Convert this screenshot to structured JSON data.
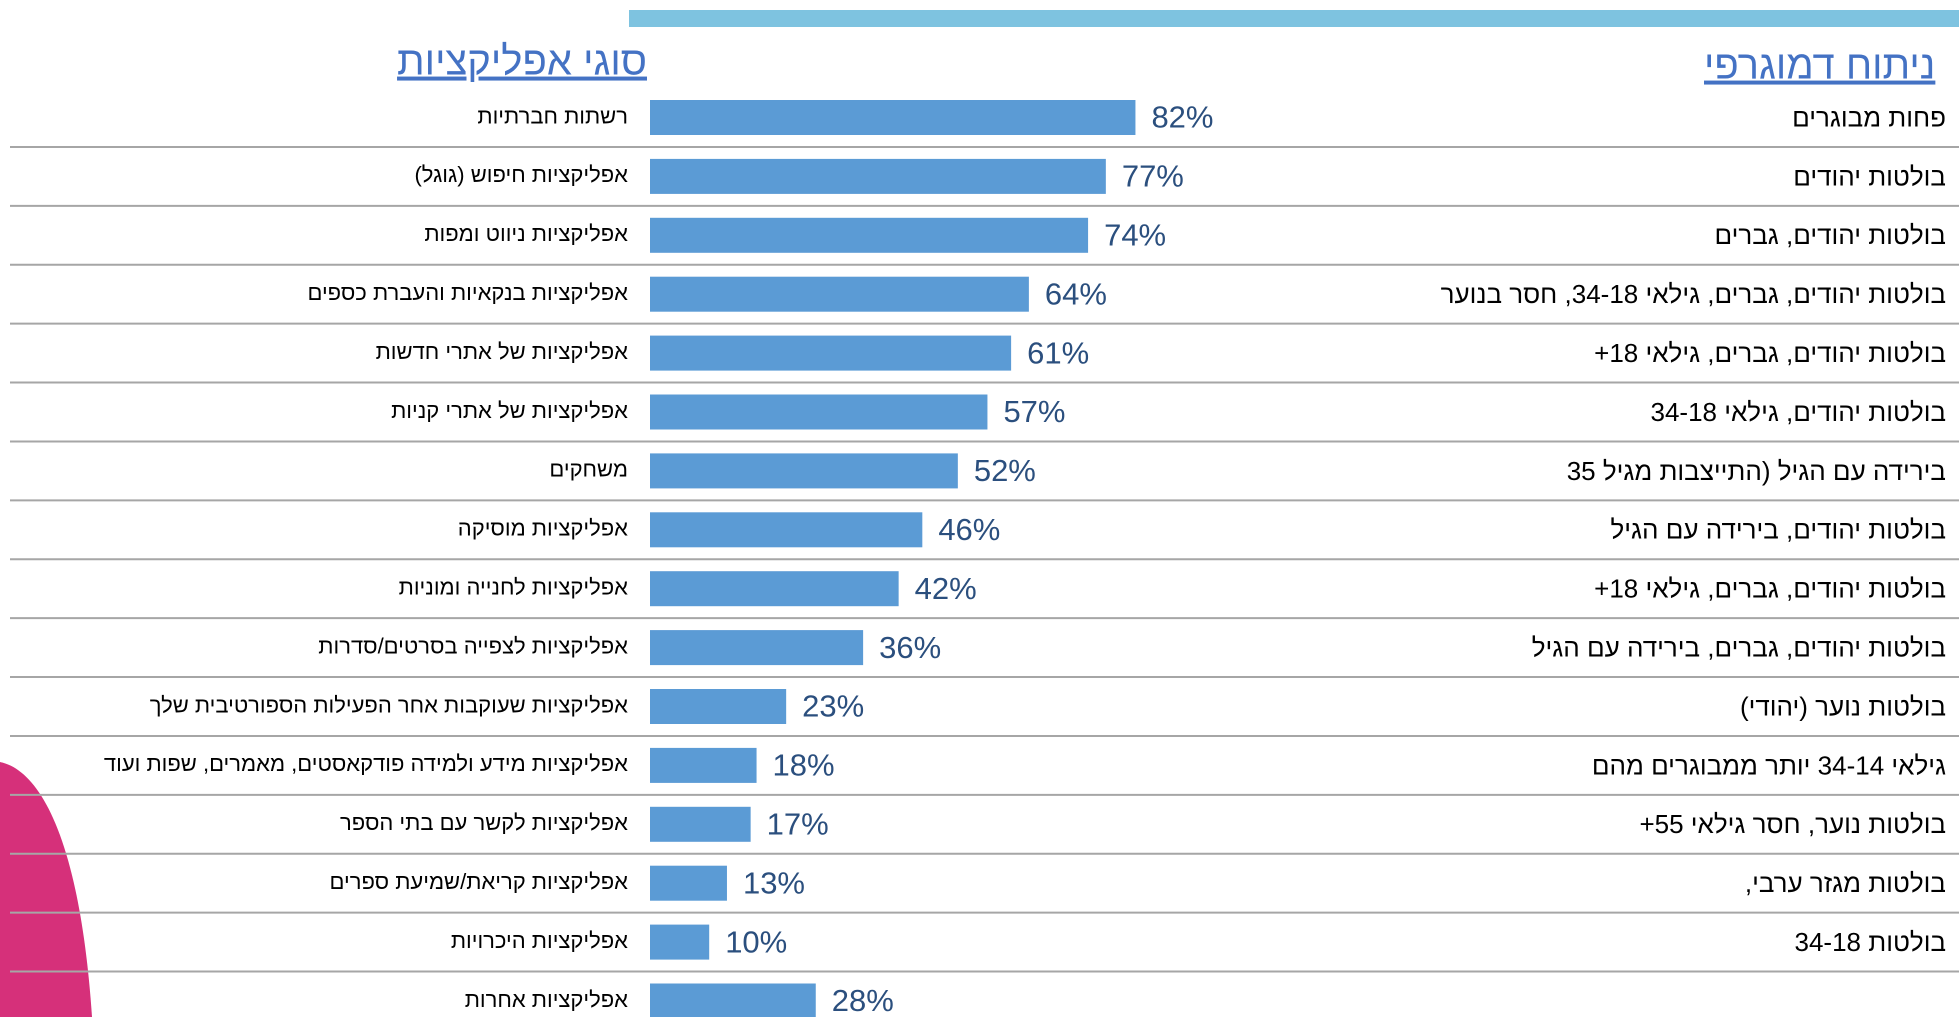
{
  "chart_data": {
    "type": "bar",
    "orientation": "horizontal",
    "title": "סוגי אפליקציות",
    "color": "#5b9bd5",
    "categories": [
      "רשתות חברתיות",
      "אפליקציות חיפוש (גוגל)",
      "אפליקציות ניווט ומפות",
      "אפליקציות בנקאיות והעברת כספים",
      "אפליקציות של אתרי חדשות",
      "אפליקציות של אתרי קניות",
      "משחקים",
      "אפליקציות מוסיקה",
      "אפליקציות לחנייה ומוניות",
      "אפליקציות לצפייה בסרטים/סדרות",
      "אפליקציות שעוקבות אחר הפעילות הספורטיבית שלך",
      "אפליקציות מידע ולמידה פודקאסטים, מאמרים, שפות ועוד",
      "אפליקציות לקשר עם בתי הספר",
      "אפליקציות קריאת/שמיעת  ספרים",
      "אפליקציות היכרויות",
      "אפליקציות אחרות"
    ],
    "values": [
      82,
      77,
      74,
      64,
      61,
      57,
      52,
      46,
      42,
      36,
      23,
      18,
      17,
      13,
      10,
      28
    ],
    "value_labels": [
      "82%",
      "77%",
      "74%",
      "64%",
      "61%",
      "57%",
      "52%",
      "46%",
      "42%",
      "36%",
      "23%",
      "18%",
      "17%",
      "13%",
      "10%",
      "28%"
    ]
  },
  "demographics": {
    "title": "ניתוח דמוגרפי",
    "rows": [
      "פחות מבוגרים",
      "בולטות יהודים",
      "בולטות יהודים, גברים",
      "בולטות יהודים, גברים, גילאי 34-18, חסר בנוער",
      "בולטות יהודים, גברים, גילאי 18+",
      "בולטות יהודים, גילאי 34-18",
      "בירידה עם הגיל (התייצבות מגיל 35",
      "בולטות יהודים, בירידה עם הגיל",
      "בולטות יהודים, גברים, גילאי 18+",
      "בולטות יהודים, גברים, בירידה עם הגיל",
      "בולטות נוער (יהודי)",
      "גילאי 34-14 יותר ממבוגרים מהם",
      "בולטות נוער, חסר גילאי 55+",
      "בולטות מגזר ערבי,",
      "בולטות 34-18"
    ]
  }
}
